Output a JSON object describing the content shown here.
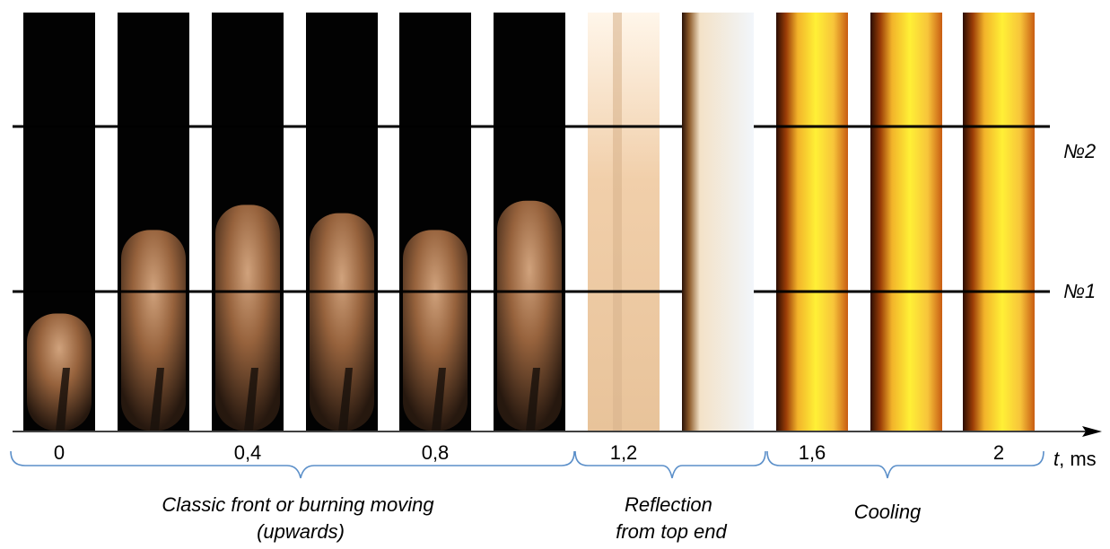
{
  "axis": {
    "label_var": "t",
    "label_unit": ", ms",
    "ticks": [
      {
        "label": "0",
        "frame": 0
      },
      {
        "label": "0,4",
        "frame": 2
      },
      {
        "label": "0,8",
        "frame": 4
      },
      {
        "label": "1,2",
        "frame": 6
      },
      {
        "label": "1,6",
        "frame": 8
      },
      {
        "label": "2",
        "frame": 10
      }
    ]
  },
  "sensors": [
    {
      "label": "№2"
    },
    {
      "label": "№1"
    }
  ],
  "stages": [
    {
      "line1": "Classic front or burning moving",
      "line2": "(upwards)"
    },
    {
      "line1": "Reflection",
      "line2": "from top end"
    },
    {
      "line1": "Cooling",
      "line2": ""
    }
  ],
  "frames": [
    {
      "kind": "dark",
      "flame_top": 0.72
    },
    {
      "kind": "dark",
      "flame_top": 0.52
    },
    {
      "kind": "dark",
      "flame_top": 0.46
    },
    {
      "kind": "dark",
      "flame_top": 0.48
    },
    {
      "kind": "dark",
      "flame_top": 0.52
    },
    {
      "kind": "dark",
      "flame_top": 0.45
    },
    {
      "kind": "bright"
    },
    {
      "kind": "white"
    },
    {
      "kind": "yellow"
    },
    {
      "kind": "yellow"
    },
    {
      "kind": "yellow"
    }
  ],
  "colors": {
    "brace": "#5b8fc9",
    "line": "#000000"
  }
}
